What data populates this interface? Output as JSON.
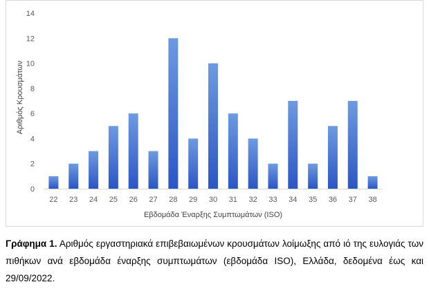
{
  "chart_data": {
    "type": "bar",
    "categories": [
      "22",
      "23",
      "24",
      "25",
      "26",
      "27",
      "28",
      "29",
      "30",
      "31",
      "32",
      "33",
      "34",
      "35",
      "36",
      "37",
      "38"
    ],
    "values": [
      1,
      2,
      3,
      5,
      6,
      3,
      12,
      4,
      10,
      6,
      4,
      2,
      7,
      2,
      5,
      7,
      1
    ],
    "xlabel": "Εβδομάδα Έναρξης Συμπτωμάτων (ISO)",
    "ylabel": "Αριθμός Κρουσμάτων",
    "ylim": [
      0,
      14
    ],
    "yticks": [
      0,
      2,
      4,
      6,
      8,
      10,
      12,
      14
    ],
    "grid": false,
    "bar_color_top": "#6e9ae0",
    "bar_color_bottom": "#2b56c4"
  },
  "caption": {
    "label": "Γράφημα 1.",
    "text": "Αριθμός εργαστηριακά επιβεβαιωμένων κρουσμάτων λοίμωξης από ιό της ευλογιάς των πιθήκων ανά εβδομάδα έναρξης συμπτωμάτων (εβδομάδα ISO), Ελλάδα, δεδομένα έως και 29/09/2022."
  }
}
